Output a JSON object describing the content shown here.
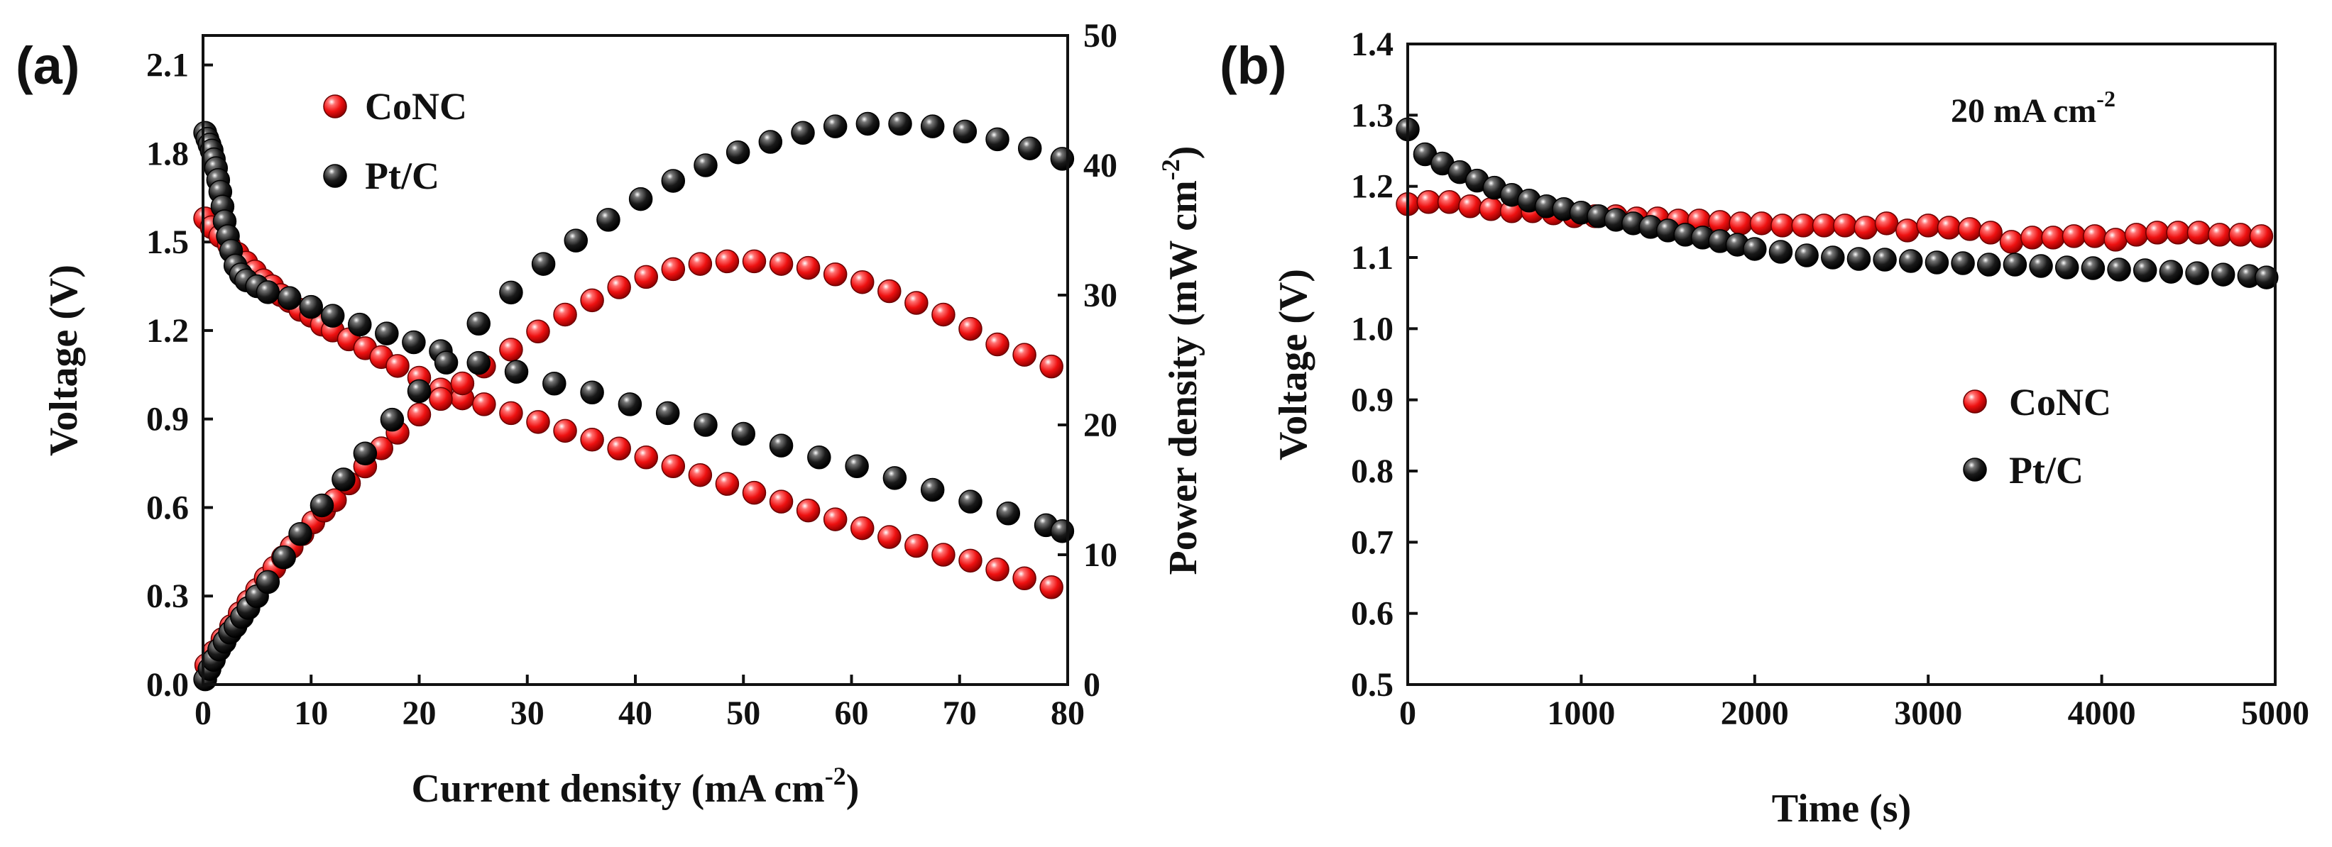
{
  "chart_data": [
    {
      "panel_label": "(a)",
      "type": "scatter",
      "xlabel": "Current density (mA cm",
      "xlabel_sup": "-2",
      "xlabel_close": ")",
      "ylabel_left": "Voltage (V)",
      "ylabel_right": "Power density (mW cm",
      "ylabel_right_sup": "-2",
      "ylabel_right_close": ")",
      "xlim": [
        0,
        80
      ],
      "ylim_left": [
        0,
        2.2
      ],
      "ylim_right": [
        0,
        50
      ],
      "xticks": [
        "0",
        "10",
        "20",
        "30",
        "40",
        "50",
        "60",
        "70",
        "80"
      ],
      "yticks_left": [
        "0.0",
        "0.3",
        "0.6",
        "0.9",
        "1.2",
        "1.5",
        "1.8",
        "2.1"
      ],
      "yticks_right": [
        "0",
        "10",
        "20",
        "30",
        "40",
        "50"
      ],
      "legend": [
        "CoNC",
        "Pt/C"
      ],
      "legend_position": "top-left",
      "series": [
        {
          "name": "CoNC polarization",
          "legend_entry": "CoNC",
          "color": "#ee1111",
          "axis": "left",
          "x": [
            0.2,
            0.8,
            1.6,
            2.4,
            3.2,
            4.0,
            4.8,
            5.6,
            6.4,
            7.2,
            8.0,
            9.0,
            10.0,
            11.0,
            12.0,
            13.5,
            15.0,
            16.5,
            18.0,
            20.0,
            22.0,
            24.0,
            26.0,
            28.5,
            31.0,
            33.5,
            36.0,
            38.5,
            41.0,
            43.5,
            46.0,
            48.5,
            51.0,
            53.5,
            56.0,
            58.5,
            61.0,
            63.5,
            66.0,
            68.5,
            71.0,
            73.5,
            76.0,
            78.5
          ],
          "y": [
            1.58,
            1.55,
            1.52,
            1.49,
            1.46,
            1.43,
            1.4,
            1.37,
            1.35,
            1.32,
            1.3,
            1.27,
            1.25,
            1.22,
            1.2,
            1.17,
            1.14,
            1.11,
            1.08,
            1.04,
            1.0,
            0.97,
            0.95,
            0.92,
            0.89,
            0.86,
            0.83,
            0.8,
            0.77,
            0.74,
            0.71,
            0.68,
            0.65,
            0.62,
            0.59,
            0.56,
            0.53,
            0.5,
            0.47,
            0.44,
            0.42,
            0.39,
            0.36,
            0.33
          ]
        },
        {
          "name": "CoNC power density",
          "legend_entry": "CoNC",
          "color": "#ee1111",
          "axis": "right",
          "x": [
            0.3,
            1.0,
            1.8,
            2.6,
            3.4,
            4.2,
            5.0,
            5.8,
            6.6,
            7.4,
            8.2,
            9.2,
            10.2,
            11.2,
            12.2,
            13.5,
            15.0,
            16.5,
            18.0,
            20.0,
            22.0,
            24.0,
            26.0,
            28.5,
            31.0,
            33.5,
            36.0,
            38.5,
            41.0,
            43.5,
            46.0,
            48.5,
            51.0,
            53.5,
            56.0,
            58.5,
            61.0,
            63.5,
            66.0,
            68.5,
            71.0,
            73.5,
            76.0,
            78.5
          ],
          "y": [
            1.5,
            2.5,
            3.5,
            4.5,
            5.5,
            6.4,
            7.3,
            8.2,
            9.0,
            9.8,
            10.6,
            11.6,
            12.5,
            13.4,
            14.2,
            15.5,
            16.8,
            18.2,
            19.4,
            20.8,
            22.0,
            23.2,
            24.5,
            25.8,
            27.2,
            28.5,
            29.6,
            30.6,
            31.4,
            32.0,
            32.4,
            32.6,
            32.6,
            32.4,
            32.1,
            31.6,
            31.0,
            30.3,
            29.4,
            28.5,
            27.4,
            26.2,
            25.4,
            24.5
          ]
        },
        {
          "name": "Pt/C polarization",
          "legend_entry": "Pt/C",
          "color": "#111111",
          "axis": "left",
          "x": [
            0.2,
            0.4,
            0.6,
            0.8,
            1.0,
            1.2,
            1.4,
            1.6,
            1.8,
            2.0,
            2.3,
            2.6,
            3.0,
            3.5,
            4.0,
            5.0,
            6.0,
            8.0,
            10.0,
            12.0,
            14.5,
            17.0,
            19.5,
            22.0,
            25.5,
            29.0,
            32.5,
            36.0,
            39.5,
            43.0,
            46.5,
            50.0,
            53.5,
            57.0,
            60.5,
            64.0,
            67.5,
            71.0,
            74.5,
            78.0,
            79.5
          ],
          "y": [
            1.87,
            1.85,
            1.83,
            1.81,
            1.78,
            1.75,
            1.71,
            1.67,
            1.62,
            1.57,
            1.52,
            1.47,
            1.42,
            1.39,
            1.37,
            1.35,
            1.33,
            1.31,
            1.28,
            1.25,
            1.22,
            1.19,
            1.16,
            1.13,
            1.09,
            1.06,
            1.02,
            0.99,
            0.95,
            0.92,
            0.88,
            0.85,
            0.81,
            0.77,
            0.74,
            0.7,
            0.66,
            0.62,
            0.58,
            0.54,
            0.52
          ]
        },
        {
          "name": "Pt/C power density",
          "legend_entry": "Pt/C",
          "color": "#111111",
          "axis": "right",
          "x": [
            0.2,
            0.6,
            1.0,
            1.5,
            2.0,
            2.5,
            3.0,
            3.6,
            4.2,
            5.0,
            6.0,
            7.5,
            9.0,
            11.0,
            13.0,
            15.0,
            17.5,
            20.0,
            22.5,
            25.5,
            28.5,
            31.5,
            34.5,
            37.5,
            40.5,
            43.5,
            46.5,
            49.5,
            52.5,
            55.5,
            58.5,
            61.5,
            64.5,
            67.5,
            70.5,
            73.5,
            76.5,
            79.5
          ],
          "y": [
            0.4,
            1.2,
            1.9,
            2.7,
            3.3,
            4.0,
            4.5,
            5.2,
            5.9,
            6.8,
            7.9,
            9.8,
            11.6,
            13.8,
            15.8,
            17.8,
            20.4,
            22.6,
            24.8,
            27.8,
            30.2,
            32.4,
            34.2,
            35.8,
            37.4,
            38.8,
            40.0,
            41.0,
            41.8,
            42.5,
            43.0,
            43.2,
            43.2,
            43.0,
            42.6,
            42.0,
            41.3,
            40.5
          ]
        }
      ]
    },
    {
      "panel_label": "(b)",
      "type": "scatter",
      "xlabel": "Time (s)",
      "ylabel": "Voltage (V)",
      "xlim": [
        0,
        5000
      ],
      "ylim": [
        0.5,
        1.4
      ],
      "xticks": [
        "0",
        "1000",
        "2000",
        "3000",
        "4000",
        "5000"
      ],
      "yticks": [
        "0.5",
        "0.6",
        "0.7",
        "0.8",
        "0.9",
        "1.0",
        "1.1",
        "1.2",
        "1.3",
        "1.4"
      ],
      "annotation": "20 mA cm",
      "annotation_sup": "-2",
      "legend": [
        "CoNC",
        "Pt/C"
      ],
      "legend_position": "center-right",
      "series": [
        {
          "name": "CoNC",
          "color": "#ee1111",
          "x": [
            0,
            120,
            240,
            360,
            480,
            600,
            720,
            840,
            960,
            1080,
            1200,
            1320,
            1440,
            1560,
            1680,
            1800,
            1920,
            2040,
            2160,
            2280,
            2400,
            2520,
            2640,
            2760,
            2880,
            3000,
            3120,
            3240,
            3360,
            3480,
            3600,
            3720,
            3840,
            3960,
            4080,
            4200,
            4320,
            4440,
            4560,
            4680,
            4800,
            4920
          ],
          "y": [
            1.175,
            1.178,
            1.178,
            1.172,
            1.168,
            1.165,
            1.165,
            1.162,
            1.158,
            1.158,
            1.158,
            1.155,
            1.155,
            1.152,
            1.152,
            1.15,
            1.148,
            1.148,
            1.145,
            1.145,
            1.145,
            1.145,
            1.142,
            1.148,
            1.138,
            1.145,
            1.142,
            1.14,
            1.135,
            1.122,
            1.128,
            1.128,
            1.13,
            1.13,
            1.125,
            1.132,
            1.135,
            1.135,
            1.135,
            1.132,
            1.132,
            1.13
          ]
        },
        {
          "name": "Pt/C",
          "color": "#111111",
          "x": [
            0,
            100,
            200,
            300,
            400,
            500,
            600,
            700,
            800,
            900,
            1000,
            1100,
            1200,
            1300,
            1400,
            1500,
            1600,
            1700,
            1800,
            1900,
            2000,
            2150,
            2300,
            2450,
            2600,
            2750,
            2900,
            3050,
            3200,
            3350,
            3500,
            3650,
            3800,
            3950,
            4100,
            4250,
            4400,
            4550,
            4700,
            4850,
            4950
          ],
          "y": [
            1.28,
            1.245,
            1.232,
            1.22,
            1.208,
            1.198,
            1.188,
            1.18,
            1.172,
            1.168,
            1.163,
            1.158,
            1.153,
            1.148,
            1.143,
            1.138,
            1.132,
            1.128,
            1.123,
            1.118,
            1.112,
            1.108,
            1.103,
            1.1,
            1.098,
            1.097,
            1.095,
            1.093,
            1.092,
            1.09,
            1.09,
            1.088,
            1.086,
            1.085,
            1.083,
            1.082,
            1.08,
            1.078,
            1.076,
            1.074,
            1.072
          ]
        }
      ]
    }
  ]
}
